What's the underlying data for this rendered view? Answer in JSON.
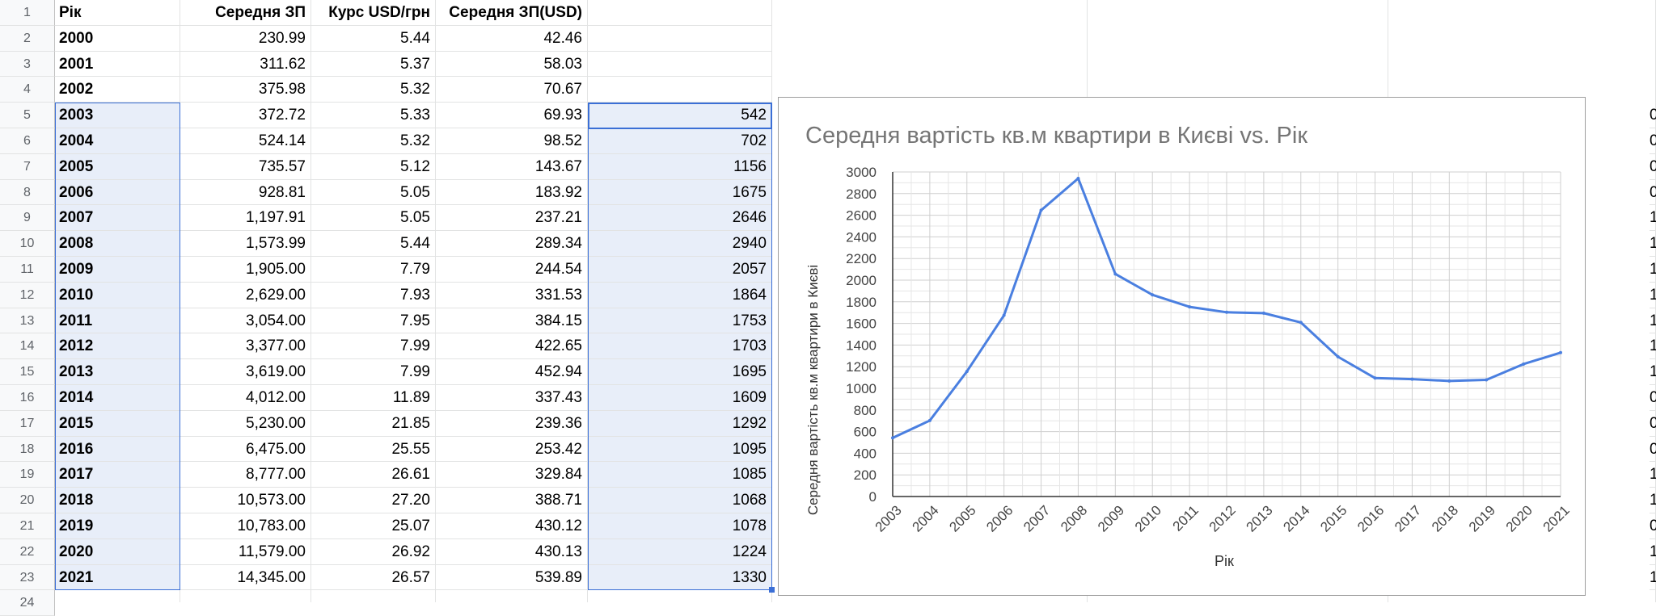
{
  "sheet": {
    "headers": {
      "a": "Рік",
      "b": "Середня ЗП",
      "c": "Курс USD/грн",
      "d": "Середня ЗП(USD)"
    },
    "rows": [
      {
        "n": "2",
        "year": "2000",
        "b": "230.99",
        "c": "5.44",
        "d": "42.46",
        "e": ""
      },
      {
        "n": "3",
        "year": "2001",
        "b": "311.62",
        "c": "5.37",
        "d": "58.03",
        "e": ""
      },
      {
        "n": "4",
        "year": "2002",
        "b": "375.98",
        "c": "5.32",
        "d": "70.67",
        "e": ""
      },
      {
        "n": "5",
        "year": "2003",
        "b": "372.72",
        "c": "5.33",
        "d": "69.93",
        "e": "542"
      },
      {
        "n": "6",
        "year": "2004",
        "b": "524.14",
        "c": "5.32",
        "d": "98.52",
        "e": "702"
      },
      {
        "n": "7",
        "year": "2005",
        "b": "735.57",
        "c": "5.12",
        "d": "143.67",
        "e": "1156"
      },
      {
        "n": "8",
        "year": "2006",
        "b": "928.81",
        "c": "5.05",
        "d": "183.92",
        "e": "1675"
      },
      {
        "n": "9",
        "year": "2007",
        "b": "1,197.91",
        "c": "5.05",
        "d": "237.21",
        "e": "2646"
      },
      {
        "n": "10",
        "year": "2008",
        "b": "1,573.99",
        "c": "5.44",
        "d": "289.34",
        "e": "2940"
      },
      {
        "n": "11",
        "year": "2009",
        "b": "1,905.00",
        "c": "7.79",
        "d": "244.54",
        "e": "2057"
      },
      {
        "n": "12",
        "year": "2010",
        "b": "2,629.00",
        "c": "7.93",
        "d": "331.53",
        "e": "1864"
      },
      {
        "n": "13",
        "year": "2011",
        "b": "3,054.00",
        "c": "7.95",
        "d": "384.15",
        "e": "1753"
      },
      {
        "n": "14",
        "year": "2012",
        "b": "3,377.00",
        "c": "7.99",
        "d": "422.65",
        "e": "1703"
      },
      {
        "n": "15",
        "year": "2013",
        "b": "3,619.00",
        "c": "7.99",
        "d": "452.94",
        "e": "1695"
      },
      {
        "n": "16",
        "year": "2014",
        "b": "4,012.00",
        "c": "11.89",
        "d": "337.43",
        "e": "1609"
      },
      {
        "n": "17",
        "year": "2015",
        "b": "5,230.00",
        "c": "21.85",
        "d": "239.36",
        "e": "1292"
      },
      {
        "n": "18",
        "year": "2016",
        "b": "6,475.00",
        "c": "25.55",
        "d": "253.42",
        "e": "1095"
      },
      {
        "n": "19",
        "year": "2017",
        "b": "8,777.00",
        "c": "26.61",
        "d": "329.84",
        "e": "1085"
      },
      {
        "n": "20",
        "year": "2018",
        "b": "10,573.00",
        "c": "27.20",
        "d": "388.71",
        "e": "1068"
      },
      {
        "n": "21",
        "year": "2019",
        "b": "10,783.00",
        "c": "25.07",
        "d": "430.12",
        "e": "1078"
      },
      {
        "n": "22",
        "year": "2020",
        "b": "11,579.00",
        "c": "26.92",
        "d": "430.13",
        "e": "1224"
      },
      {
        "n": "23",
        "year": "2021",
        "b": "14,345.00",
        "c": "26.57",
        "d": "539.89",
        "e": "1330"
      }
    ],
    "row1": "1",
    "row24": "24",
    "right_edge_column": [
      "0",
      "0",
      "0",
      "0",
      "1",
      "1",
      "1",
      "1",
      "1",
      "1",
      "1",
      "0",
      "0",
      "0",
      "1",
      "1",
      "0",
      "1",
      "1"
    ]
  },
  "chart_data": {
    "type": "line",
    "title": "Середня вартість кв.м квартири в Києві vs. Рік",
    "xlabel": "Рік",
    "ylabel": "Середня вартість кв.м квартири в Києві",
    "ylim": [
      0,
      3000
    ],
    "yticks": [
      "0",
      "200",
      "400",
      "600",
      "800",
      "1000",
      "1200",
      "1400",
      "1600",
      "1800",
      "2000",
      "2200",
      "2400",
      "2600",
      "2800",
      "3000"
    ],
    "categories": [
      "2003",
      "2004",
      "2005",
      "2006",
      "2007",
      "2008",
      "2009",
      "2010",
      "2011",
      "2012",
      "2013",
      "2014",
      "2015",
      "2016",
      "2017",
      "2018",
      "2019",
      "2020",
      "2021"
    ],
    "values": [
      542,
      702,
      1156,
      1675,
      2646,
      2940,
      2057,
      1864,
      1753,
      1703,
      1695,
      1609,
      1292,
      1095,
      1085,
      1068,
      1078,
      1224,
      1330
    ],
    "grid": true,
    "line_color": "#4a7fe0"
  }
}
